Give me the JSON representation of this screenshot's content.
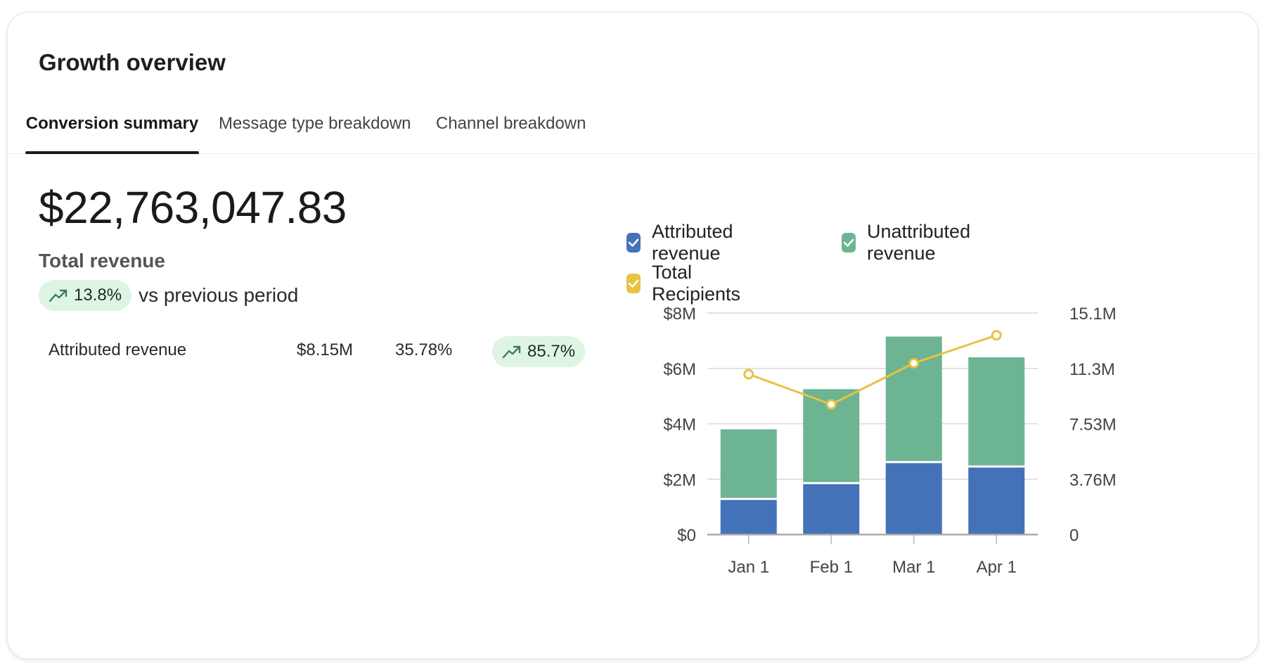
{
  "card": {
    "title": "Growth overview",
    "tabs": [
      {
        "label": "Conversion summary",
        "active": true
      },
      {
        "label": "Message type breakdown",
        "active": false
      },
      {
        "label": "Channel breakdown",
        "active": false
      }
    ]
  },
  "summary": {
    "total_value": "$22,763,047.83",
    "total_label": "Total revenue",
    "change_pct": "13.8%",
    "change_text": "vs previous period",
    "change_icon": "trending-up-icon",
    "rows": [
      {
        "label": "Attributed revenue",
        "value": "$8.15M",
        "share": "35.78%",
        "change": "85.7%"
      }
    ]
  },
  "colors": {
    "attributed": "#4472b8",
    "unattributed": "#6db492",
    "recipients": "#e8c243",
    "pill_bg": "#def5e4",
    "trend_icon": "#3e7a56"
  },
  "chart_data": {
    "type": "bar",
    "stacked": true,
    "legend": [
      {
        "label": "Attributed revenue",
        "color": "#4472b8"
      },
      {
        "label": "Unattributed revenue",
        "color": "#6db492"
      },
      {
        "label": "Total Recipients",
        "color": "#e8c243"
      }
    ],
    "categories": [
      "Jan 1",
      "Feb 1",
      "Mar 1",
      "Apr 1"
    ],
    "series": [
      {
        "name": "Attributed revenue",
        "axis": "left",
        "kind": "bar",
        "values": [
          1.25,
          1.82,
          2.58,
          2.42
        ]
      },
      {
        "name": "Unattributed revenue",
        "axis": "left",
        "kind": "bar",
        "values": [
          2.55,
          3.43,
          4.57,
          3.98
        ]
      },
      {
        "name": "Total Recipients",
        "axis": "right",
        "kind": "line",
        "values": [
          10.9,
          8.85,
          11.65,
          13.55
        ]
      }
    ],
    "y_left": {
      "ticks": [
        "$0",
        "$2M",
        "$4M",
        "$6M",
        "$8M"
      ],
      "range": [
        0,
        8
      ]
    },
    "y_right": {
      "ticks": [
        "0",
        "3.76M",
        "7.53M",
        "11.3M",
        "15.1M"
      ],
      "range": [
        0,
        15.06
      ]
    },
    "grid": true
  }
}
